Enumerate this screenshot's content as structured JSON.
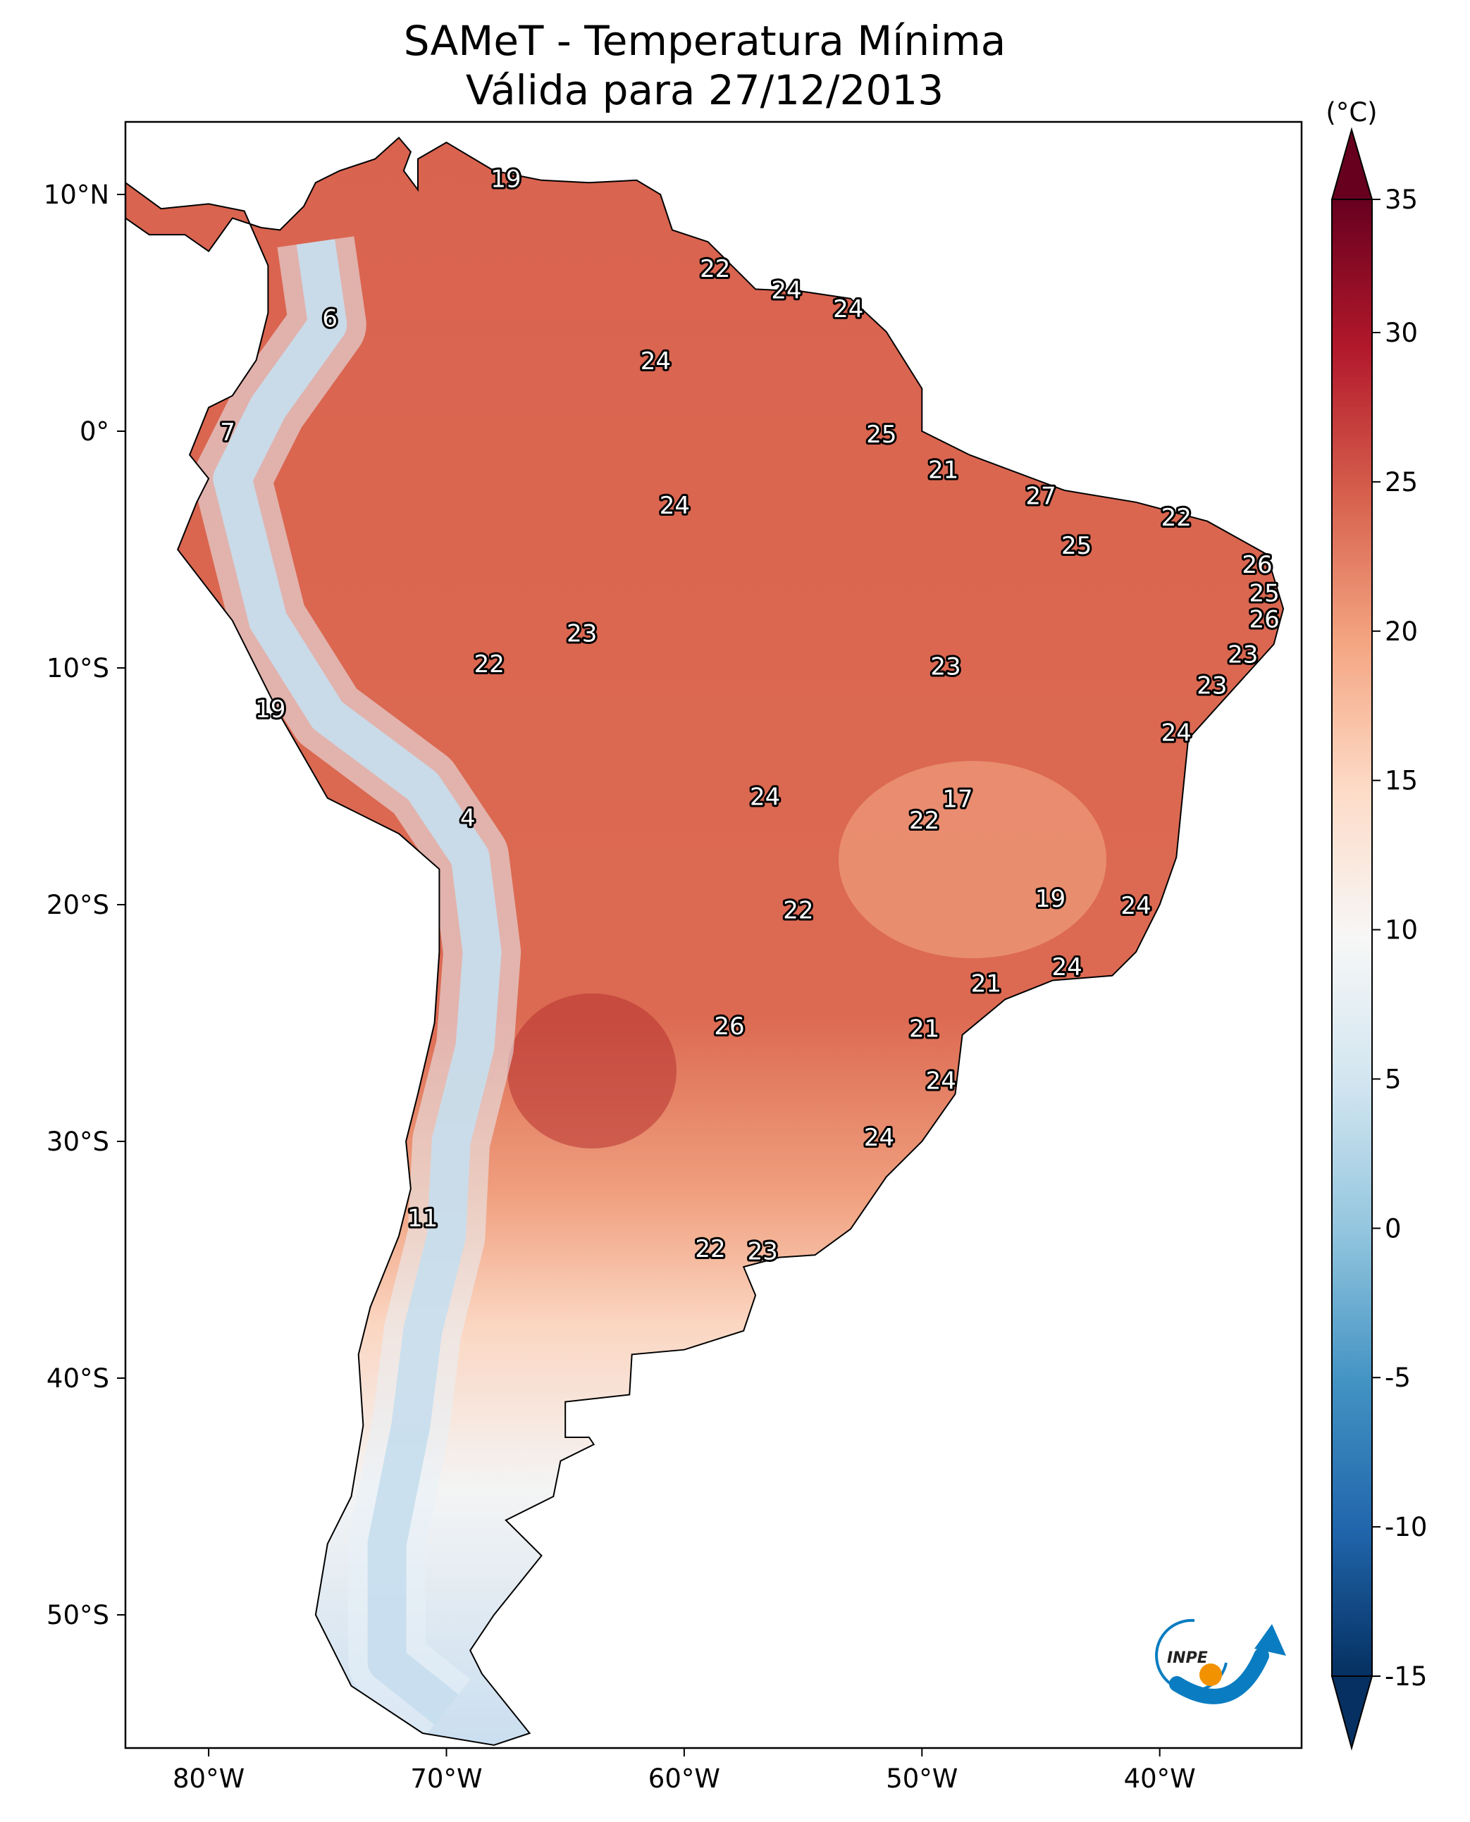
{
  "chart_data": {
    "type": "heatmap",
    "title": "SAMeT - Temperatura Mínima",
    "subtitle": "Válida para 27/12/2013",
    "colorbar": {
      "unit_label": "(°C)",
      "ticks": [
        35,
        30,
        25,
        20,
        15,
        10,
        5,
        0,
        -5,
        -10,
        -15
      ],
      "range": [
        -15,
        35
      ],
      "extend": "both",
      "colormap": "RdBu_r",
      "color_stops": [
        {
          "value": -15,
          "color": "#053061"
        },
        {
          "value": -10,
          "color": "#2166ac"
        },
        {
          "value": -5,
          "color": "#4393c3"
        },
        {
          "value": 0,
          "color": "#92c5de"
        },
        {
          "value": 5,
          "color": "#d1e5f0"
        },
        {
          "value": 10,
          "color": "#f7f7f7"
        },
        {
          "value": 15,
          "color": "#fddbc7"
        },
        {
          "value": 20,
          "color": "#f4a582"
        },
        {
          "value": 25,
          "color": "#d6604d"
        },
        {
          "value": 30,
          "color": "#b2182b"
        },
        {
          "value": 35,
          "color": "#67001f"
        }
      ]
    },
    "x_axis": {
      "range": [
        -83.5,
        -34
      ],
      "ticks": [
        -80,
        -70,
        -60,
        -50,
        -40
      ],
      "tick_labels": [
        "80°W",
        "70°W",
        "60°W",
        "50°W",
        "40°W"
      ]
    },
    "y_axis": {
      "range": [
        -56,
        13
      ],
      "ticks": [
        10,
        0,
        -10,
        -20,
        -30,
        -40,
        -50
      ],
      "tick_labels": [
        "10°N",
        "0°",
        "10°S",
        "20°S",
        "30°S",
        "40°S",
        "50°S"
      ]
    },
    "points": [
      {
        "lon": -67.5,
        "lat": 10.6,
        "value": "19"
      },
      {
        "lon": -58.7,
        "lat": 6.8,
        "value": "22"
      },
      {
        "lon": -55.7,
        "lat": 5.9,
        "value": "24"
      },
      {
        "lon": -53.1,
        "lat": 5.1,
        "value": "24"
      },
      {
        "lon": -74.9,
        "lat": 4.7,
        "value": "6"
      },
      {
        "lon": -61.2,
        "lat": 2.9,
        "value": "24"
      },
      {
        "lon": -79.2,
        "lat": -0.1,
        "value": "7"
      },
      {
        "lon": -51.7,
        "lat": -0.2,
        "value": "25"
      },
      {
        "lon": -49.1,
        "lat": -1.7,
        "value": "21"
      },
      {
        "lon": -45.0,
        "lat": -2.8,
        "value": "27"
      },
      {
        "lon": -60.4,
        "lat": -3.2,
        "value": "24"
      },
      {
        "lon": -39.3,
        "lat": -3.7,
        "value": "22"
      },
      {
        "lon": -43.5,
        "lat": -4.9,
        "value": "25"
      },
      {
        "lon": -35.9,
        "lat": -5.7,
        "value": "26"
      },
      {
        "lon": -35.6,
        "lat": -6.9,
        "value": "25"
      },
      {
        "lon": -35.6,
        "lat": -8.0,
        "value": "26"
      },
      {
        "lon": -64.3,
        "lat": -8.6,
        "value": "23"
      },
      {
        "lon": -36.5,
        "lat": -9.5,
        "value": "23"
      },
      {
        "lon": -49.0,
        "lat": -10.0,
        "value": "23"
      },
      {
        "lon": -68.2,
        "lat": -9.9,
        "value": "22"
      },
      {
        "lon": -37.8,
        "lat": -10.8,
        "value": "23"
      },
      {
        "lon": -77.4,
        "lat": -11.8,
        "value": "19"
      },
      {
        "lon": -39.3,
        "lat": -12.8,
        "value": "24"
      },
      {
        "lon": -56.6,
        "lat": -15.5,
        "value": "24"
      },
      {
        "lon": -48.5,
        "lat": -15.6,
        "value": "17"
      },
      {
        "lon": -49.9,
        "lat": -16.5,
        "value": "22"
      },
      {
        "lon": -69.1,
        "lat": -16.4,
        "value": "4"
      },
      {
        "lon": -44.6,
        "lat": -19.8,
        "value": "19"
      },
      {
        "lon": -41.0,
        "lat": -20.1,
        "value": "24"
      },
      {
        "lon": -55.2,
        "lat": -20.3,
        "value": "22"
      },
      {
        "lon": -43.9,
        "lat": -22.7,
        "value": "24"
      },
      {
        "lon": -47.3,
        "lat": -23.4,
        "value": "21"
      },
      {
        "lon": -49.9,
        "lat": -25.3,
        "value": "21"
      },
      {
        "lon": -58.1,
        "lat": -25.2,
        "value": "26"
      },
      {
        "lon": -49.2,
        "lat": -27.5,
        "value": "24"
      },
      {
        "lon": -51.8,
        "lat": -29.9,
        "value": "24"
      },
      {
        "lon": -71.0,
        "lat": -33.3,
        "value": "11"
      },
      {
        "lon": -58.9,
        "lat": -34.6,
        "value": "22"
      },
      {
        "lon": -56.7,
        "lat": -34.7,
        "value": "23"
      }
    ]
  },
  "logo": {
    "text": "INPE",
    "colors": {
      "blue": "#0a7cc1",
      "orange": "#f39200"
    }
  }
}
